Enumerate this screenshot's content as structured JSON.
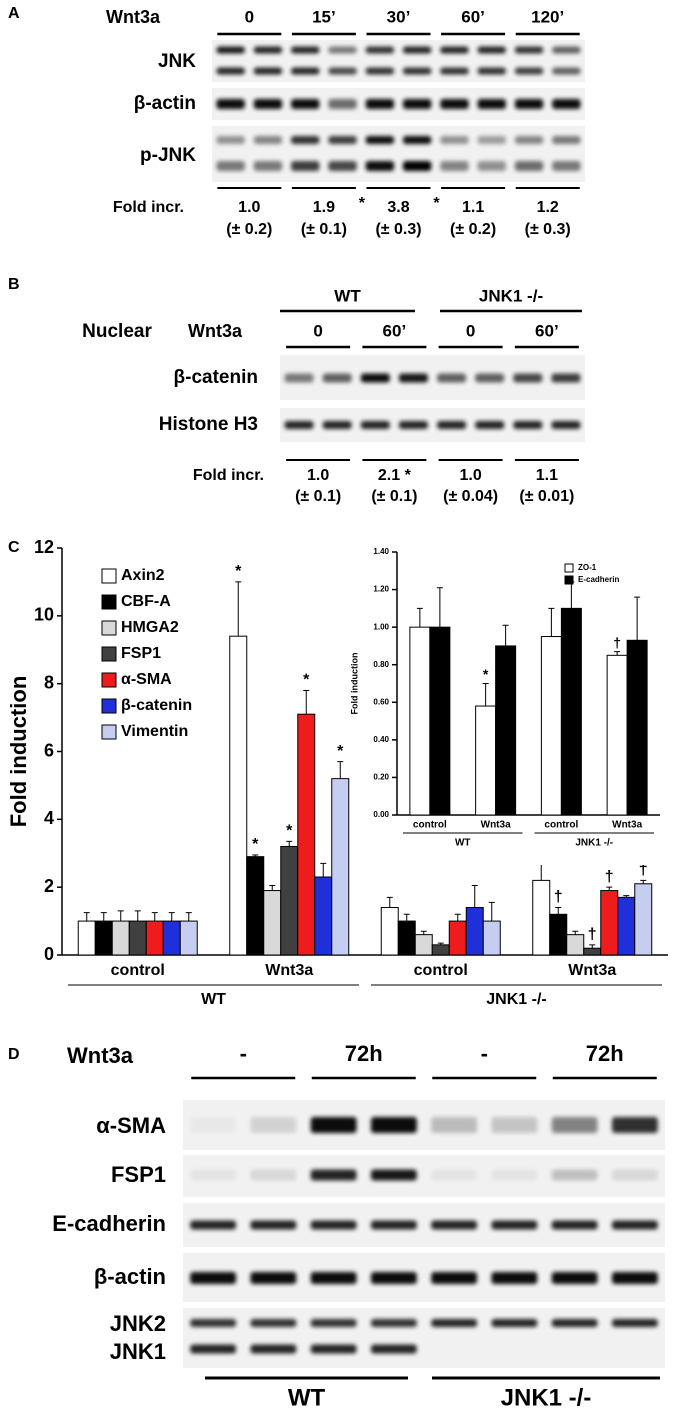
{
  "panel_a": {
    "label": "A",
    "treatment": "Wnt3a",
    "timepoints": [
      "0",
      "15’",
      "30’",
      "60’",
      "120’"
    ],
    "rows": [
      "JNK",
      "β-actin",
      "p-JNK"
    ],
    "fold_label": "Fold incr.",
    "fold": [
      "1.0",
      "1.9",
      "3.8",
      "1.1",
      "1.2"
    ],
    "fold_marks": [
      null,
      "*",
      "*",
      null,
      null
    ],
    "sd": [
      "(± 0.2)",
      "(± 0.1)",
      "(± 0.3)",
      "(± 0.2)",
      "(± 0.3)"
    ]
  },
  "panel_b": {
    "label": "B",
    "groups": [
      "WT",
      "JNK1 -/-"
    ],
    "fraction": "Nuclear",
    "treatment": "Wnt3a",
    "timepoints": [
      "0",
      "60’",
      "0",
      "60’"
    ],
    "rows": [
      "β-catenin",
      "Histone H3"
    ],
    "fold_label": "Fold incr.",
    "fold": [
      "1.0",
      "2.1 *",
      "1.0",
      "1.1"
    ],
    "sd": [
      "(± 0.1)",
      "(± 0.1)",
      "(± 0.04)",
      "(± 0.01)"
    ]
  },
  "chart_data": [
    {
      "type": "bar",
      "label": "C",
      "y_label": "Fold induction",
      "categories": [
        "control",
        "Wnt3a",
        "control",
        "Wnt3a"
      ],
      "groups": [
        "WT",
        "JNK1 -/-"
      ],
      "ylim": [
        0,
        12
      ],
      "yticks": [
        0,
        2,
        4,
        6,
        8,
        10,
        12
      ],
      "legend": "upper left",
      "series": [
        {
          "name": "Axin2",
          "color": "#ffffff",
          "values": [
            1.0,
            9.4,
            1.4,
            2.2
          ],
          "errors": [
            0.25,
            1.6,
            0.3,
            1.1
          ],
          "markers": [
            null,
            "*",
            null,
            "†"
          ]
        },
        {
          "name": "CBF-A",
          "color": "#000000",
          "values": [
            1.0,
            2.9,
            1.0,
            1.2
          ],
          "errors": [
            0.25,
            0.05,
            0.2,
            0.2
          ],
          "markers": [
            null,
            "*",
            null,
            "†"
          ]
        },
        {
          "name": "HMGA2",
          "color": "#d9d9d9",
          "values": [
            1.0,
            1.9,
            0.6,
            0.6
          ],
          "errors": [
            0.3,
            0.15,
            0.1,
            0.1
          ],
          "markers": [
            null,
            null,
            null,
            null
          ]
        },
        {
          "name": "FSP1",
          "color": "#404040",
          "values": [
            1.0,
            3.2,
            0.3,
            0.2
          ],
          "errors": [
            0.3,
            0.15,
            0.05,
            0.1
          ],
          "markers": [
            null,
            "*",
            null,
            "†"
          ]
        },
        {
          "name": "α-SMA",
          "color": "#ee1c1c",
          "values": [
            1.0,
            7.1,
            1.0,
            1.9
          ],
          "errors": [
            0.25,
            0.7,
            0.2,
            0.1
          ],
          "markers": [
            null,
            "*",
            null,
            "†"
          ]
        },
        {
          "name": "β-catenin",
          "color": "#1f2fd9",
          "values": [
            1.0,
            2.3,
            1.4,
            1.7
          ],
          "errors": [
            0.25,
            0.4,
            0.65,
            0.05
          ],
          "markers": [
            null,
            null,
            null,
            null
          ]
        },
        {
          "name": "Vimentin",
          "color": "#c5cdf0",
          "values": [
            1.0,
            5.2,
            1.0,
            2.1
          ],
          "errors": [
            0.25,
            0.5,
            0.55,
            0.1
          ],
          "markers": [
            null,
            "*",
            null,
            "†"
          ]
        }
      ]
    },
    {
      "type": "bar",
      "y_label": "Fold induction",
      "categories": [
        "control",
        "Wnt3a",
        "control",
        "Wnt3a"
      ],
      "groups": [
        "WT",
        "JNK1 -/-"
      ],
      "ylim": [
        0,
        1.4
      ],
      "yticks": [
        {
          "value": 0,
          "label": "0.00"
        },
        {
          "value": 0.2,
          "label": "0.20"
        },
        {
          "value": 0.4,
          "label": "0.40"
        },
        {
          "value": 0.6,
          "label": "0.60"
        },
        {
          "value": 0.8,
          "label": "0.80"
        },
        {
          "value": 1.0,
          "label": "1.00"
        },
        {
          "value": 1.2,
          "label": "1.20"
        },
        {
          "value": 1.4,
          "label": "1.40"
        }
      ],
      "legend": "upper right",
      "series": [
        {
          "name": "ZO-1",
          "color": "#ffffff",
          "values": [
            1.0,
            0.58,
            0.95,
            0.85
          ],
          "errors": [
            0.1,
            0.12,
            0.15,
            0.02
          ],
          "markers": [
            null,
            "*",
            null,
            "†"
          ]
        },
        {
          "name": "E-cadherin",
          "color": "#000000",
          "values": [
            1.0,
            0.9,
            1.1,
            0.93
          ],
          "errors": [
            0.21,
            0.11,
            0.14,
            0.23
          ],
          "markers": [
            null,
            null,
            null,
            null
          ]
        }
      ]
    }
  ],
  "panel_d": {
    "label": "D",
    "treatment": "Wnt3a",
    "conditions": [
      "-",
      "72h",
      "-",
      "72h"
    ],
    "rows": [
      "α-SMA",
      "FSP1",
      "E-cadherin",
      "β-actin",
      "JNK2",
      "JNK1"
    ],
    "groups": [
      "WT",
      "JNK1 -/-"
    ]
  }
}
